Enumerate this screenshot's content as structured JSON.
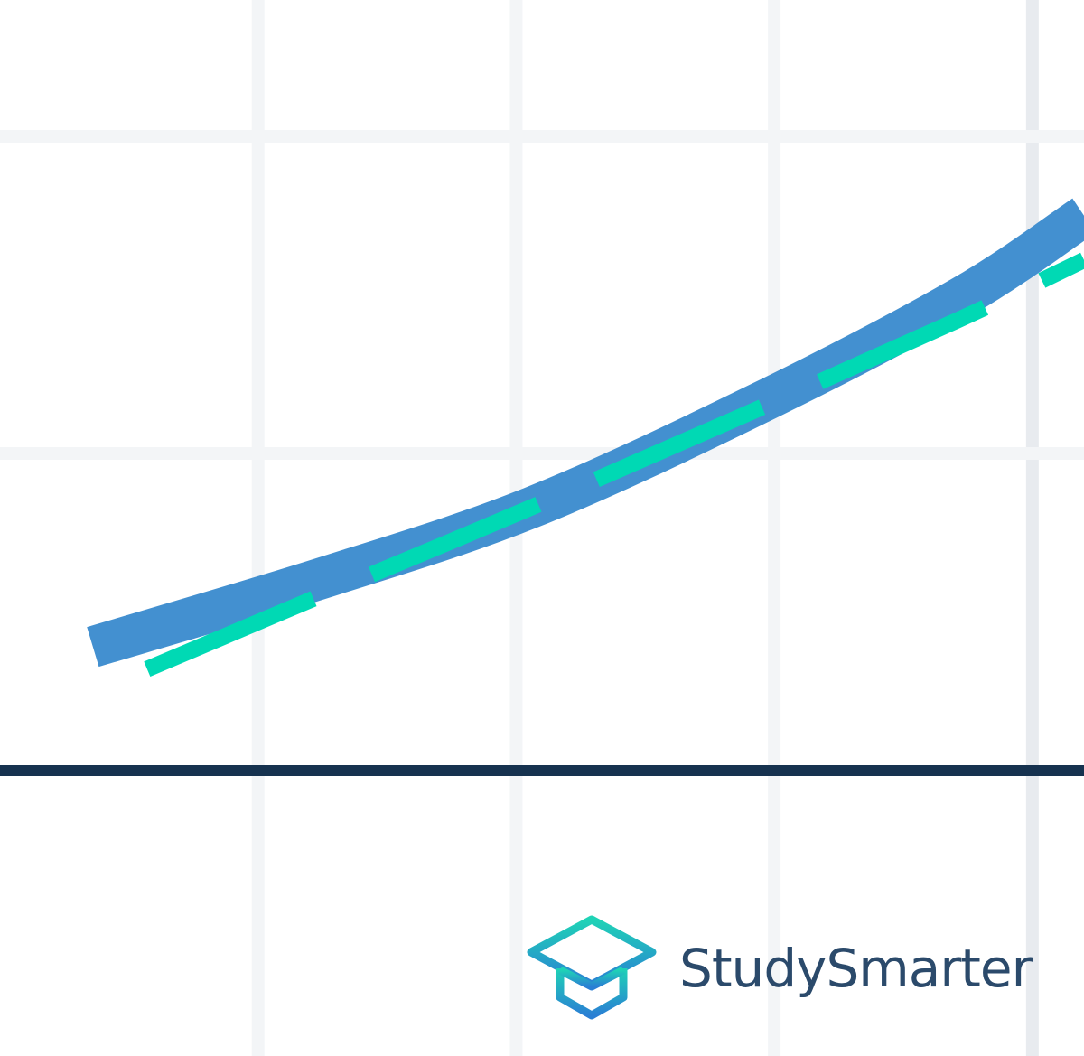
{
  "chart_data": {
    "type": "line",
    "title": "",
    "xlabel": "",
    "ylabel": "",
    "xlim": [
      0,
      4.2
    ],
    "ylim": [
      -0.9,
      2.43
    ],
    "grid": true,
    "series": [
      {
        "style": "solid",
        "color": "#4390d0",
        "x": [
          0.36,
          1.26,
          2.06,
          2.92,
          3.72,
          4.2
        ],
        "y": [
          0.39,
          0.61,
          0.83,
          1.15,
          1.49,
          1.75
        ]
      },
      {
        "style": "dashed",
        "color": "#00d9b4",
        "x": [
          0.57,
          1.18,
          2.03,
          2.88,
          3.71,
          4.2
        ],
        "y": [
          0.32,
          0.53,
          0.82,
          1.12,
          1.42,
          1.61
        ]
      }
    ],
    "axis_color": "#16324f"
  },
  "logo": {
    "text": "StudySmarter"
  }
}
